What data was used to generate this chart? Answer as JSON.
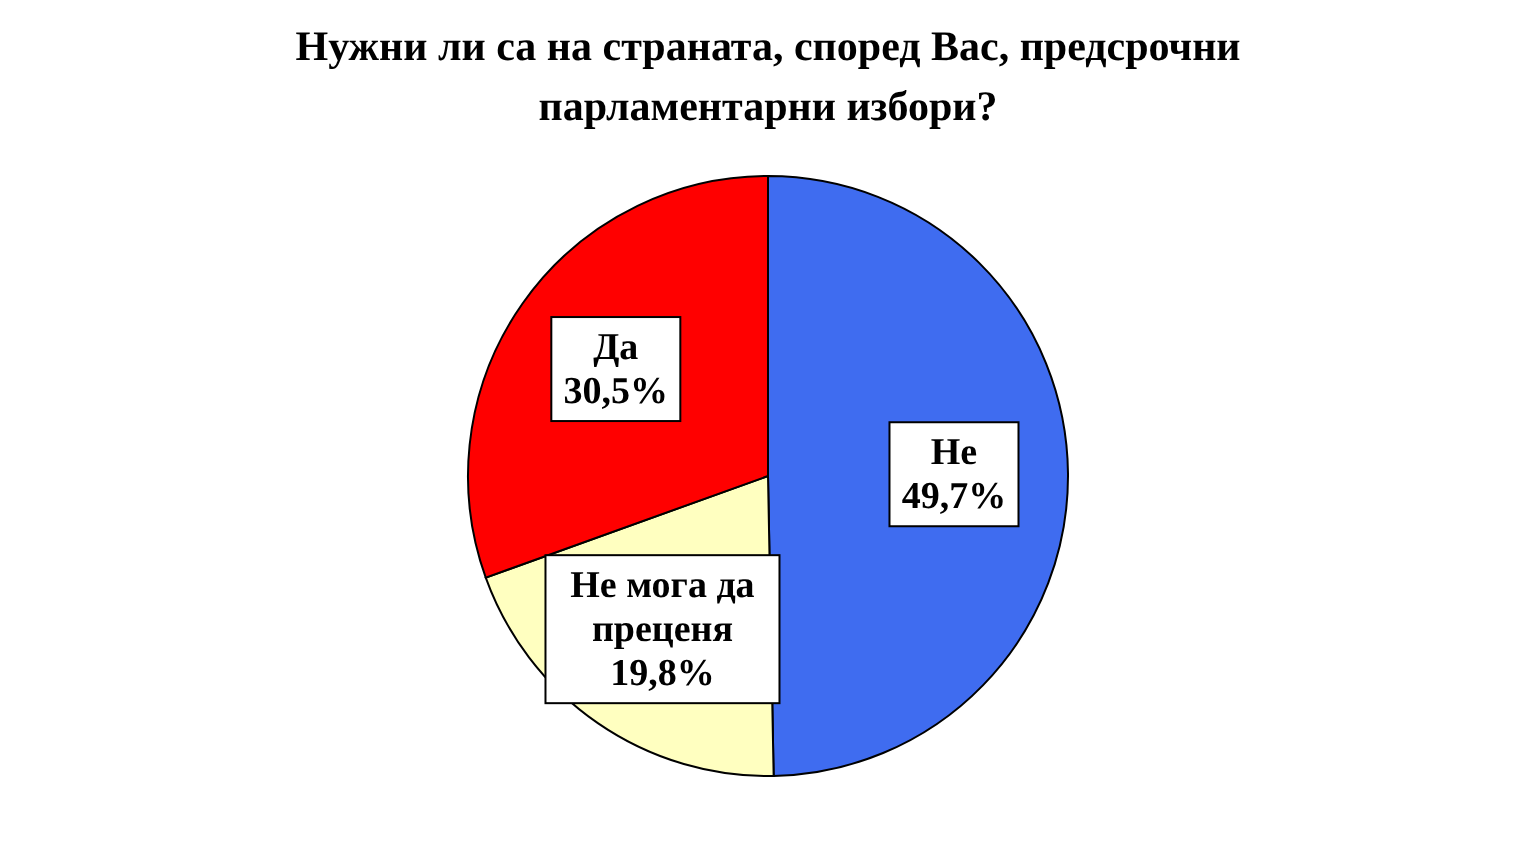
{
  "chart_data": {
    "type": "pie",
    "title": "Нужни ли са на страната, според Вас, предсрочни парламентарни избори?",
    "categories": [
      "Не",
      "Не мога да преценя",
      "Да"
    ],
    "values": [
      49.7,
      19.8,
      30.5
    ],
    "value_labels": [
      "49,7%",
      "19,8%",
      "30,5%"
    ],
    "colors": [
      "#3f6cf0",
      "#ffffc0",
      "#ff0000"
    ],
    "legend": false
  }
}
